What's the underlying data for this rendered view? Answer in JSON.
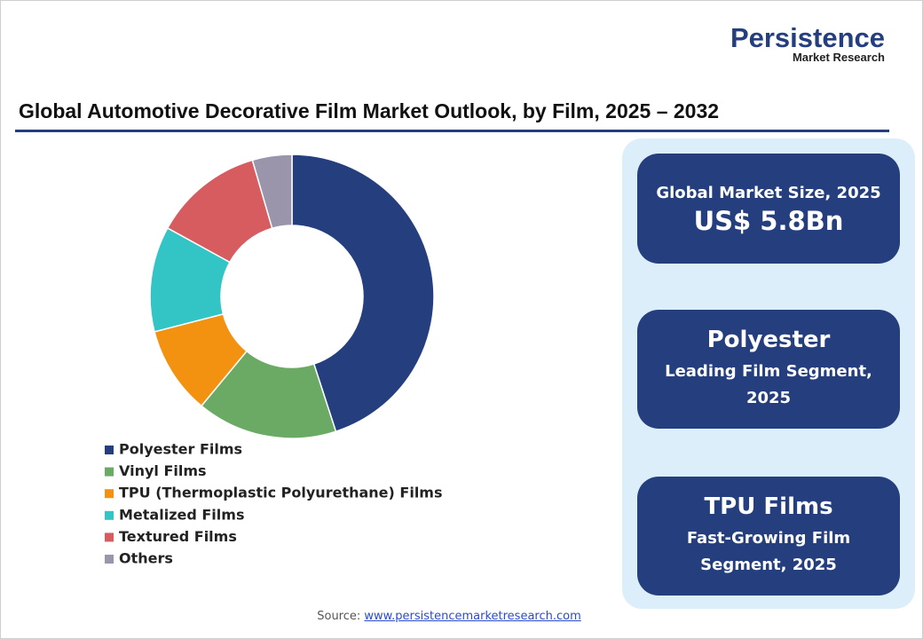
{
  "logo": {
    "name": "Persistence",
    "tagline": "Market Research"
  },
  "chart_data": {
    "type": "pie",
    "title": "Global Automotive Decorative Film Market Outlook, by Film, 2025 – 2032",
    "categories": [
      "Polyester Films",
      "Vinyl Films",
      "TPU (Thermoplastic Polyurethane) Films",
      "Metalized Films",
      "Textured Films",
      "Others"
    ],
    "values": [
      45,
      16,
      10,
      12,
      12.5,
      4.5
    ],
    "colors": [
      "#253f7e",
      "#6aaa64",
      "#f39111",
      "#33c5c6",
      "#d65c5f",
      "#9a95aa"
    ]
  },
  "cards": [
    {
      "heading": "Global Market Size, 2025",
      "lines": [
        "US$ 5.8Bn"
      ]
    },
    {
      "heading": "Polyester",
      "lines": [
        "Leading Film Segment,",
        "2025"
      ]
    },
    {
      "heading": "TPU Films",
      "lines": [
        "Fast-Growing Film",
        "Segment, 2025"
      ]
    }
  ],
  "source": {
    "label": "Source:",
    "link": "www.persistencemarketresearch.com"
  }
}
